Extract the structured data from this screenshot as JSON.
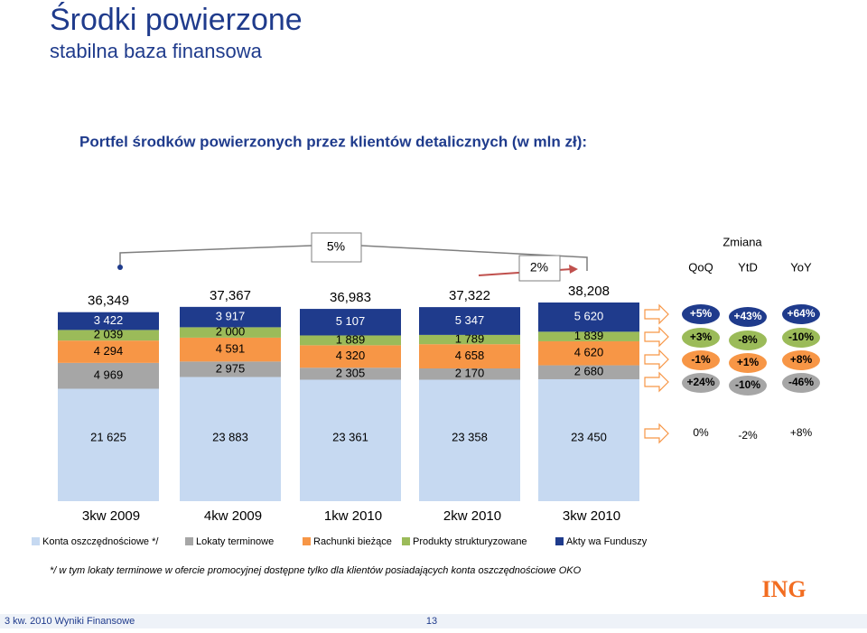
{
  "header": {
    "title": "Środki powierzone",
    "subtitle": "stabilna baza finansowa"
  },
  "chart_data": {
    "type": "stacked_bar",
    "title": "Portfel środków powierzonych przez klientów detalicznych (w mln zł):",
    "categories": [
      "3kw 2009",
      "4kw 2009",
      "1kw 2010",
      "2kw 2010",
      "3kw 2010"
    ],
    "series": [
      {
        "name": "Konta oszczędnościowe */",
        "color": "#c6d9f1",
        "values": [
          21625,
          23883,
          23361,
          23358,
          23450
        ],
        "value_labels": [
          "21 625",
          "23 883",
          "23 361",
          "23 358",
          "23 450"
        ]
      },
      {
        "name": "Lokaty terminowe",
        "color": "#a6a6a6",
        "values": [
          4969,
          2975,
          2305,
          2170,
          2680
        ],
        "value_labels": [
          "4 969",
          "2 975",
          "2 305",
          "2 170",
          "2 680"
        ]
      },
      {
        "name": "Rachunki bieżące",
        "color": "#f79646",
        "values": [
          4294,
          4591,
          4320,
          4658,
          4620
        ],
        "value_labels": [
          "4 294",
          "4 591",
          "4 320",
          "4 658",
          "4 620"
        ]
      },
      {
        "name": "Produkty strukturyzowane",
        "color": "#9bbb59",
        "values": [
          2039,
          2000,
          1889,
          1789,
          1839
        ],
        "value_labels": [
          "2 039",
          "2 000",
          "1 889",
          "1 789",
          "1 839"
        ]
      },
      {
        "name": "Akty wa Funduszy",
        "color": "#1f3b8c",
        "values": [
          3422,
          3917,
          5107,
          5347,
          5620
        ],
        "value_labels": [
          "3 422",
          "3 917",
          "5 107",
          "5 347",
          "5 620"
        ]
      }
    ],
    "totals": {
      "values": [
        36349,
        37367,
        36983,
        37322,
        38208
      ],
      "value_labels": [
        "36,349",
        "37,367",
        "36,983",
        "37,322",
        "38,208"
      ]
    },
    "annotations": [
      "5%",
      "2%"
    ]
  },
  "changes": {
    "title": "Zmiana",
    "columns": [
      "QoQ",
      "YtD",
      "YoY"
    ],
    "rows": [
      [
        "+5%",
        "+43%",
        "+64%"
      ],
      [
        "+3%",
        "-8%",
        "-10%"
      ],
      [
        "-1%",
        "+1%",
        "+8%"
      ],
      [
        "+24%",
        "-10%",
        "-46%"
      ],
      [
        "0%",
        "-2%",
        "+8%"
      ]
    ]
  },
  "footnote": "*/ w tym lokaty terminowe w ofercie promocyjnej dostępne tylko dla klientów posiadających konta oszczędnościowe OKO",
  "footer": {
    "text": "3 kw. 2010 Wyniki Finansowe",
    "page": "13"
  },
  "logo": "ING"
}
